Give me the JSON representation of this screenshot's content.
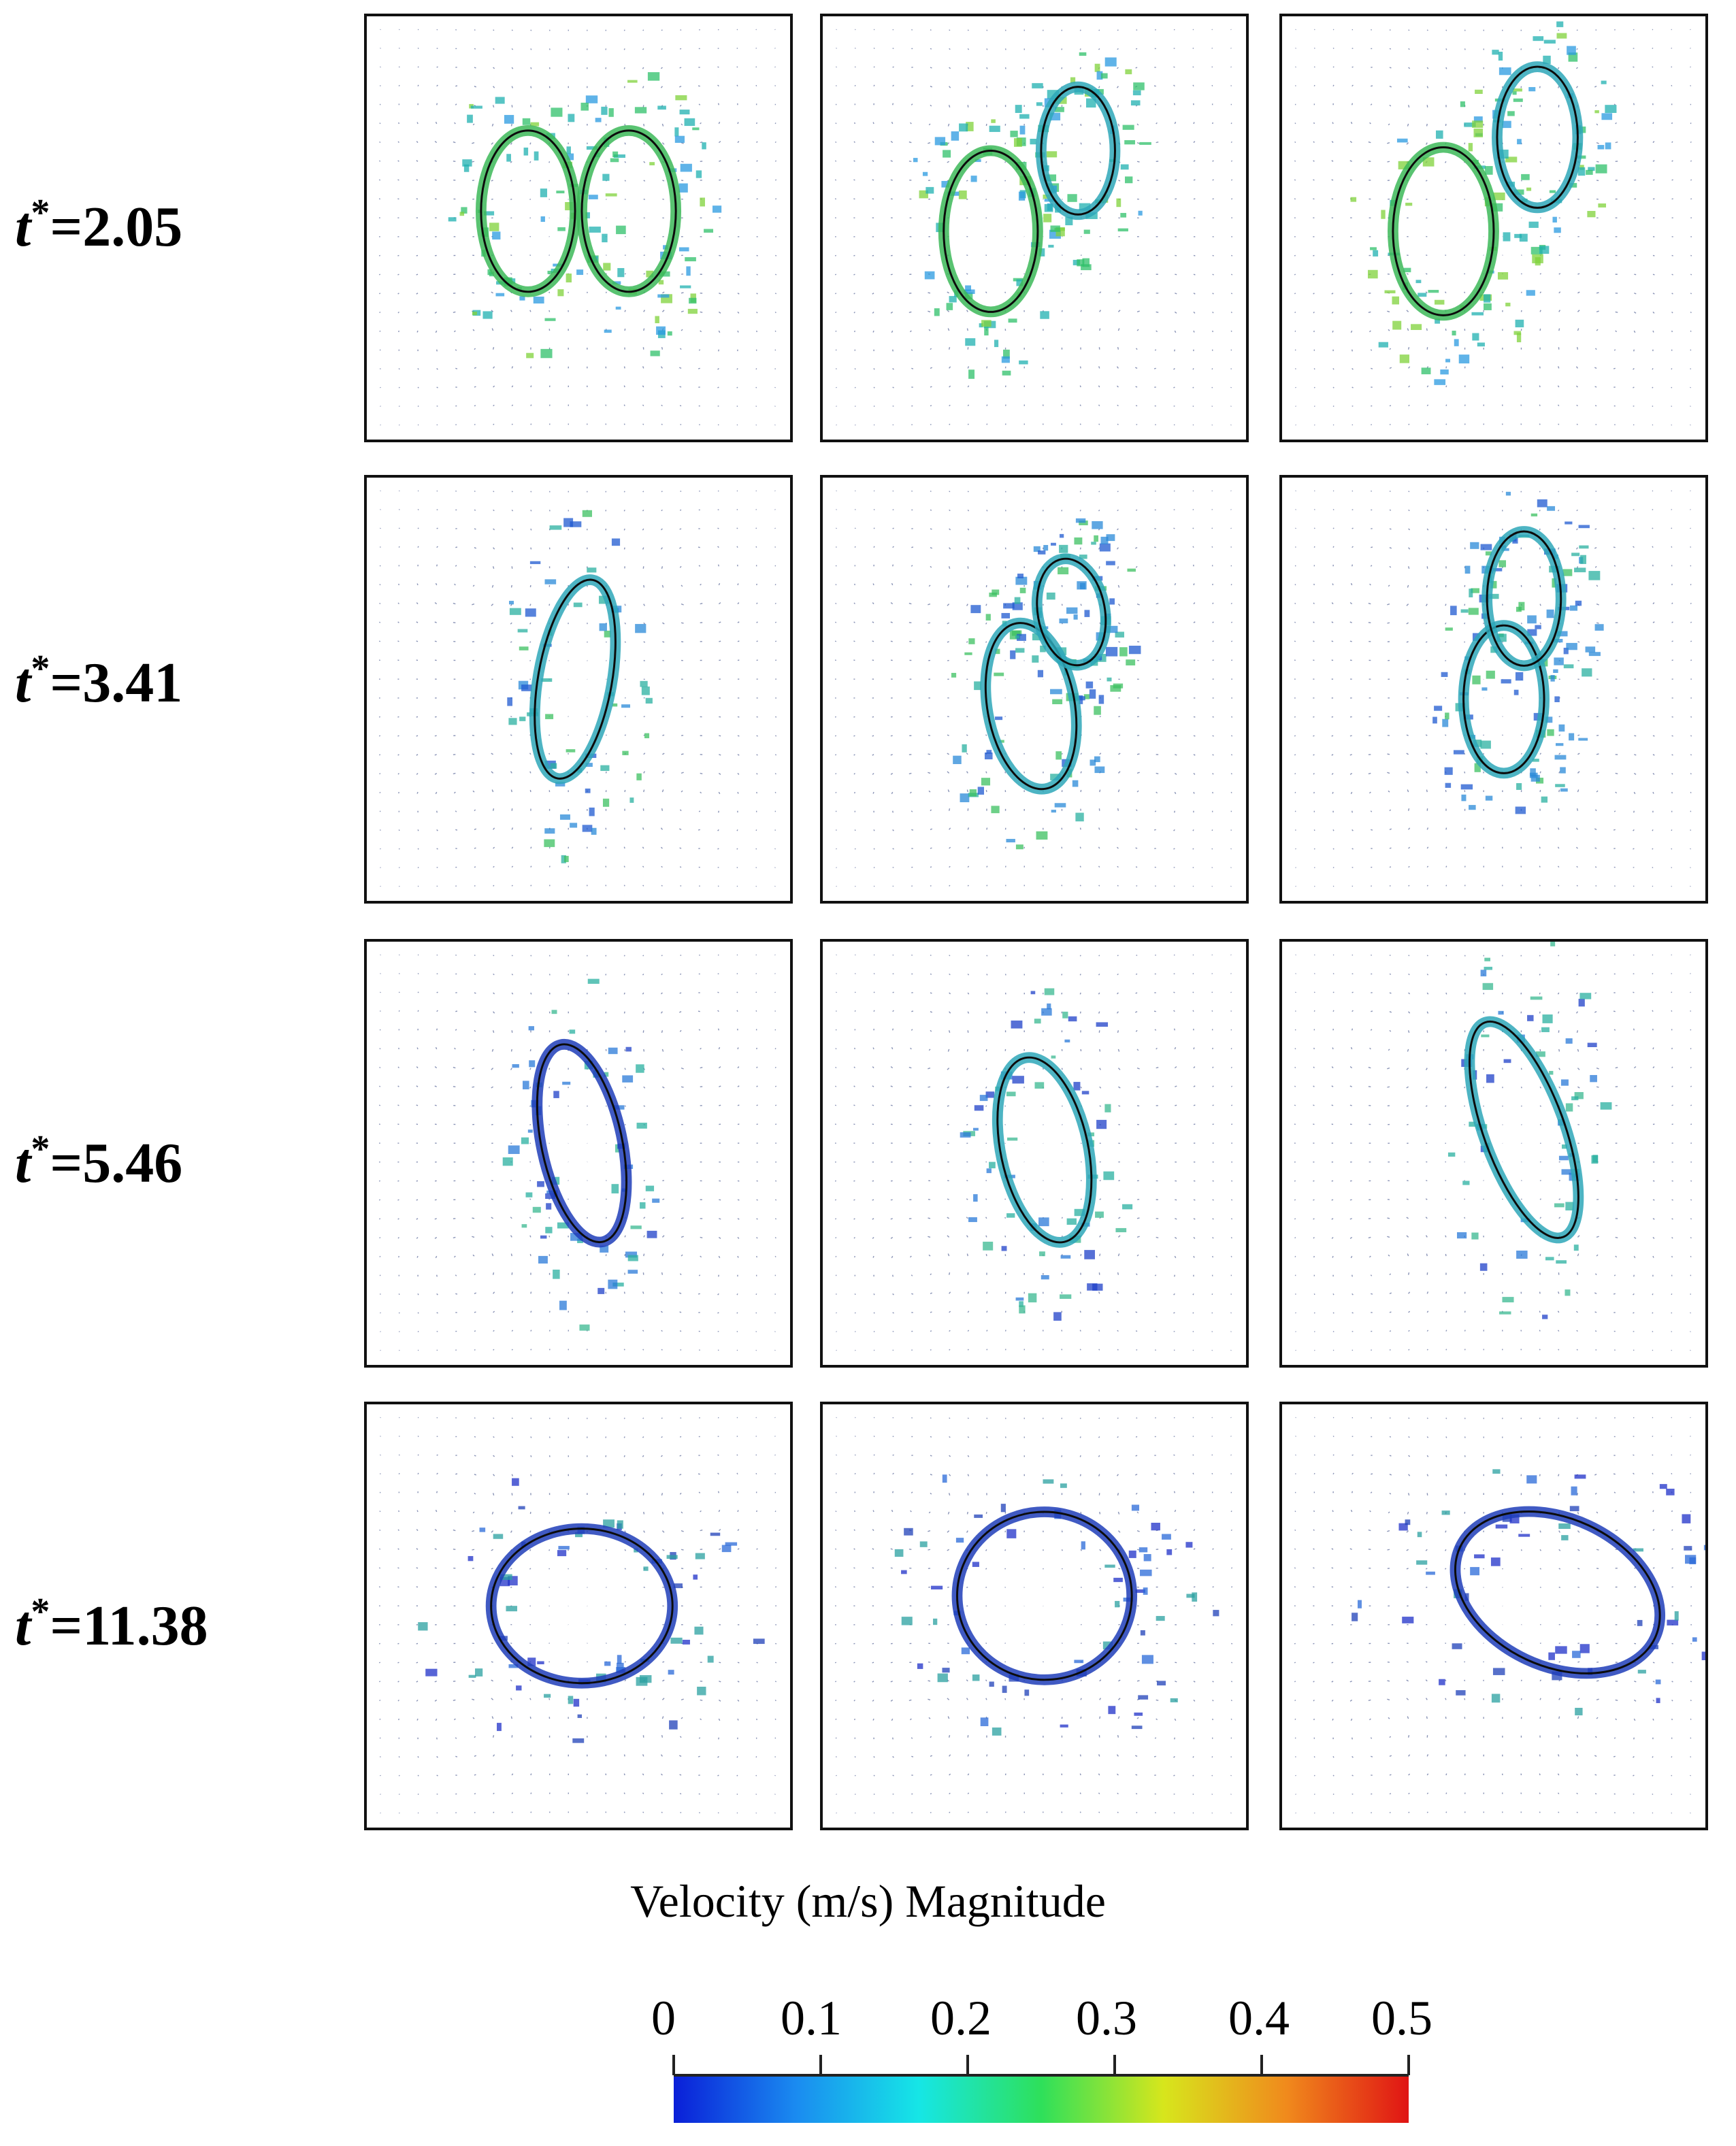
{
  "rows": [
    {
      "label_t": "t",
      "label_sup": "*",
      "label_value": "=2.05"
    },
    {
      "label_t": "t",
      "label_sup": "*",
      "label_value": "=3.41"
    },
    {
      "label_t": "t",
      "label_sup": "*",
      "label_value": "=5.46"
    },
    {
      "label_t": "t",
      "label_sup": "*",
      "label_value": "=11.38"
    }
  ],
  "colorbar": {
    "title": "Velocity (m/s) Magnitude",
    "ticks": [
      "0",
      "0.1",
      "0.2",
      "0.3",
      "0.4",
      "0.5"
    ],
    "colors": [
      "#0a1fd8",
      "#1a8bf0",
      "#16e6e6",
      "#2ee05a",
      "#d7e61c",
      "#f08a1c",
      "#e01414"
    ]
  },
  "panel_colors": {
    "ring_high": "#3cb858",
    "ring_mid": "#2ea7b8",
    "ring_low": "#1f3db8",
    "arrow": "#2a3b7a",
    "border": "#111111",
    "outline": "#0b0b0b"
  }
}
